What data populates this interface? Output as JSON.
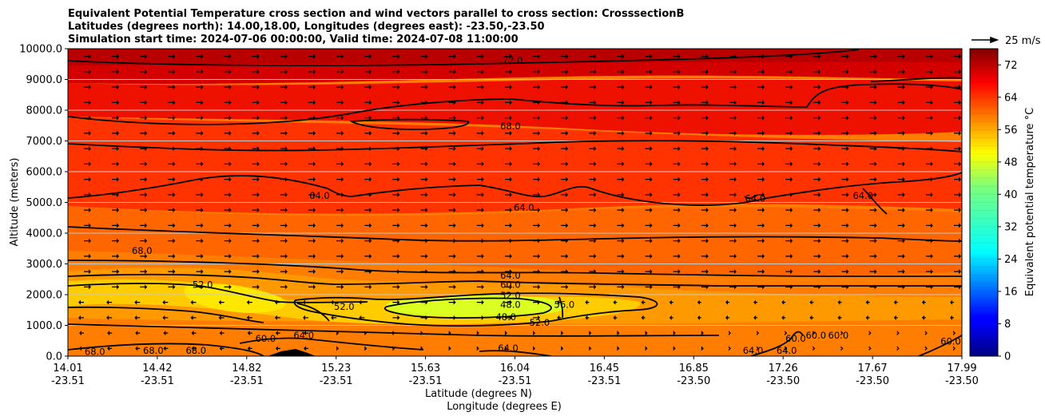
{
  "chart_data": {
    "type": "heatmap",
    "title_lines": [
      "Equivalent Potential Temperature cross section and wind vectors parallel to cross section: CrosssectionB",
      "Latitudes (degrees north): 14.00,18.00, Longitudes (degrees east): -23.50,-23.50",
      "Simulation start time: 2024-07-06 00:00:00, Valid time: 2024-07-08 11:00:00"
    ],
    "xlabel_lat": "Latitude (degrees N)",
    "xlabel_lon": "Longitude (degrees E)",
    "ylabel": "Altitude (meters)",
    "x_ticks_lat": [
      "14.01",
      "14.42",
      "14.82",
      "15.23",
      "15.63",
      "16.04",
      "16.45",
      "16.85",
      "17.26",
      "17.67",
      "17.99"
    ],
    "x_ticks_lon": [
      "-23.51",
      "-23.51",
      "-23.51",
      "-23.51",
      "-23.51",
      "-23.51",
      "-23.51",
      "-23.50",
      "-23.50",
      "-23.50",
      "-23.50"
    ],
    "y_ticks": [
      "0.0",
      "1000.0",
      "2000.0",
      "3000.0",
      "4000.0",
      "5000.0",
      "6000.0",
      "7000.0",
      "8000.0",
      "9000.0",
      "10000.0"
    ],
    "ylim": [
      0,
      10000
    ],
    "xlim": [
      14.01,
      17.99
    ],
    "grid": "horizontal",
    "colorbar": {
      "label": "Equivalent potential temperature $^\\circ$C",
      "label_text": "Equivalent potential temperature °C",
      "range": [
        0,
        76
      ],
      "ticks": [
        "0",
        "8",
        "16",
        "24",
        "32",
        "40",
        "48",
        "56",
        "64",
        "72"
      ]
    },
    "quiver_key": "25 m/s",
    "contour_levels": [
      48.0,
      52.0,
      56.0,
      60.0,
      64.0,
      68.0,
      72.0
    ],
    "contour_labels": [
      {
        "text": "72.0",
        "x": 15.99,
        "y": 9600
      },
      {
        "text": "68.0",
        "x": 15.98,
        "y": 7450
      },
      {
        "text": "64.0",
        "x": 16.04,
        "y": 4800
      },
      {
        "text": "64.0",
        "x": 15.13,
        "y": 5200
      },
      {
        "text": "64.0",
        "x": 17.07,
        "y": 5100
      },
      {
        "text": "64.0",
        "x": 17.55,
        "y": 5200
      },
      {
        "text": "68.0",
        "x": 14.34,
        "y": 3400
      },
      {
        "text": "52.0",
        "x": 14.61,
        "y": 2300
      },
      {
        "text": "64.0",
        "x": 15.98,
        "y": 2600
      },
      {
        "text": "60.0",
        "x": 15.98,
        "y": 2300
      },
      {
        "text": "52.0",
        "x": 15.98,
        "y": 1950
      },
      {
        "text": "48.0",
        "x": 15.98,
        "y": 1650
      },
      {
        "text": "52.0",
        "x": 15.24,
        "y": 1580
      },
      {
        "text": "56.0",
        "x": 16.22,
        "y": 1650
      },
      {
        "text": "48.0",
        "x": 15.96,
        "y": 1250
      },
      {
        "text": "52.0",
        "x": 16.11,
        "y": 1070
      },
      {
        "text": "60.0",
        "x": 14.89,
        "y": 540
      },
      {
        "text": "64.0",
        "x": 15.06,
        "y": 650
      },
      {
        "text": "64.0",
        "x": 15.97,
        "y": 230
      },
      {
        "text": "68.0",
        "x": 14.13,
        "y": 120
      },
      {
        "text": "68.0",
        "x": 14.39,
        "y": 150
      },
      {
        "text": "68.0",
        "x": 14.58,
        "y": 150
      },
      {
        "text": "60.0",
        "x": 17.25,
        "y": 540
      },
      {
        "text": "64.0",
        "x": 17.21,
        "y": 160
      },
      {
        "text": "60.0",
        "x": 17.34,
        "y": 650
      },
      {
        "text": "64.0",
        "x": 17.06,
        "y": 160
      },
      {
        "text": "60.0",
        "x": 17.44,
        "y": 650
      },
      {
        "text": "60.0",
        "x": 17.94,
        "y": 450
      }
    ]
  },
  "colors": {
    "background": "#ffffff",
    "contour_line": "#000000",
    "grid_line": "#c8c8c8"
  }
}
